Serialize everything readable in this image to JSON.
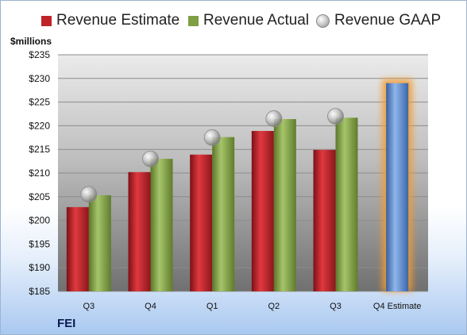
{
  "legend": {
    "estimate_label": "Revenue Estimate",
    "actual_label": "Revenue Actual",
    "gaap_label": "Revenue GAAP"
  },
  "unit_label": "$millions",
  "company_label": "FEI",
  "colors": {
    "estimate": "#c0222a",
    "actual": "#7e9f43",
    "gaap": "#a8a8a8",
    "forecast": "#4f7fc8",
    "forecast_glow": "#f39b2e"
  },
  "chart_data": {
    "type": "bar",
    "categories": [
      "Q3",
      "Q4",
      "Q1",
      "Q2",
      "Q3",
      "Q4 Estimate"
    ],
    "series": [
      {
        "name": "Revenue Estimate",
        "values": [
          202.8,
          210.2,
          213.9,
          218.9,
          214.9,
          null
        ]
      },
      {
        "name": "Revenue Actual",
        "values": [
          205.3,
          213.0,
          217.6,
          221.4,
          221.7,
          229.0
        ]
      },
      {
        "name": "Revenue GAAP",
        "values": [
          205.5,
          213.0,
          217.5,
          221.5,
          222.0,
          null
        ]
      }
    ],
    "ylabel": "$millions",
    "ylim": [
      185,
      235
    ],
    "yticks": [
      185,
      190,
      195,
      200,
      205,
      210,
      215,
      220,
      225,
      230,
      235
    ],
    "ytick_labels": [
      "$185",
      "$190",
      "$195",
      "$200",
      "$205",
      "$210",
      "$215",
      "$220",
      "$225",
      "$230",
      "$235"
    ],
    "legend_position": "top",
    "grid": true
  }
}
